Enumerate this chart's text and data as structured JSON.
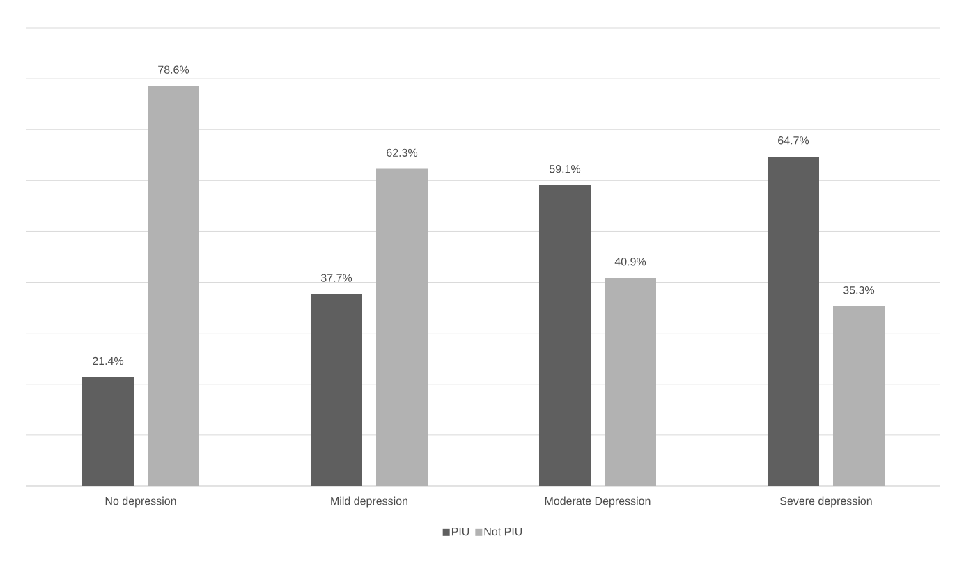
{
  "chart_data": {
    "type": "bar",
    "categories": [
      "No depression",
      "Mild depression",
      "Moderate Depression",
      "Severe depression"
    ],
    "series": [
      {
        "name": "PIU",
        "color": "#5f5f5f",
        "values": [
          21.4,
          37.7,
          59.1,
          64.7
        ],
        "value_labels": [
          "21.4%",
          "37.7%",
          "59.1%",
          "64.7%"
        ]
      },
      {
        "name": "Not PIU",
        "color": "#b2b2b2",
        "values": [
          78.6,
          62.3,
          40.9,
          35.3
        ],
        "value_labels": [
          "78.6%",
          "62.3%",
          "40.9%",
          "35.3%"
        ]
      }
    ],
    "ylim": [
      0,
      90
    ],
    "yticks": [
      {
        "value": 0,
        "label": null
      },
      {
        "value": 10,
        "label": null
      },
      {
        "value": 20,
        "label": null
      },
      {
        "value": 30,
        "label": null
      },
      {
        "value": 40,
        "label": null
      },
      {
        "value": 50,
        "label": null
      },
      {
        "value": 60,
        "label": null
      },
      {
        "value": 70,
        "label": null
      },
      {
        "value": 80,
        "label": null
      },
      {
        "value": 90,
        "label": null
      }
    ],
    "grid": "y",
    "legend": "bottom",
    "tick_labels": "x"
  }
}
